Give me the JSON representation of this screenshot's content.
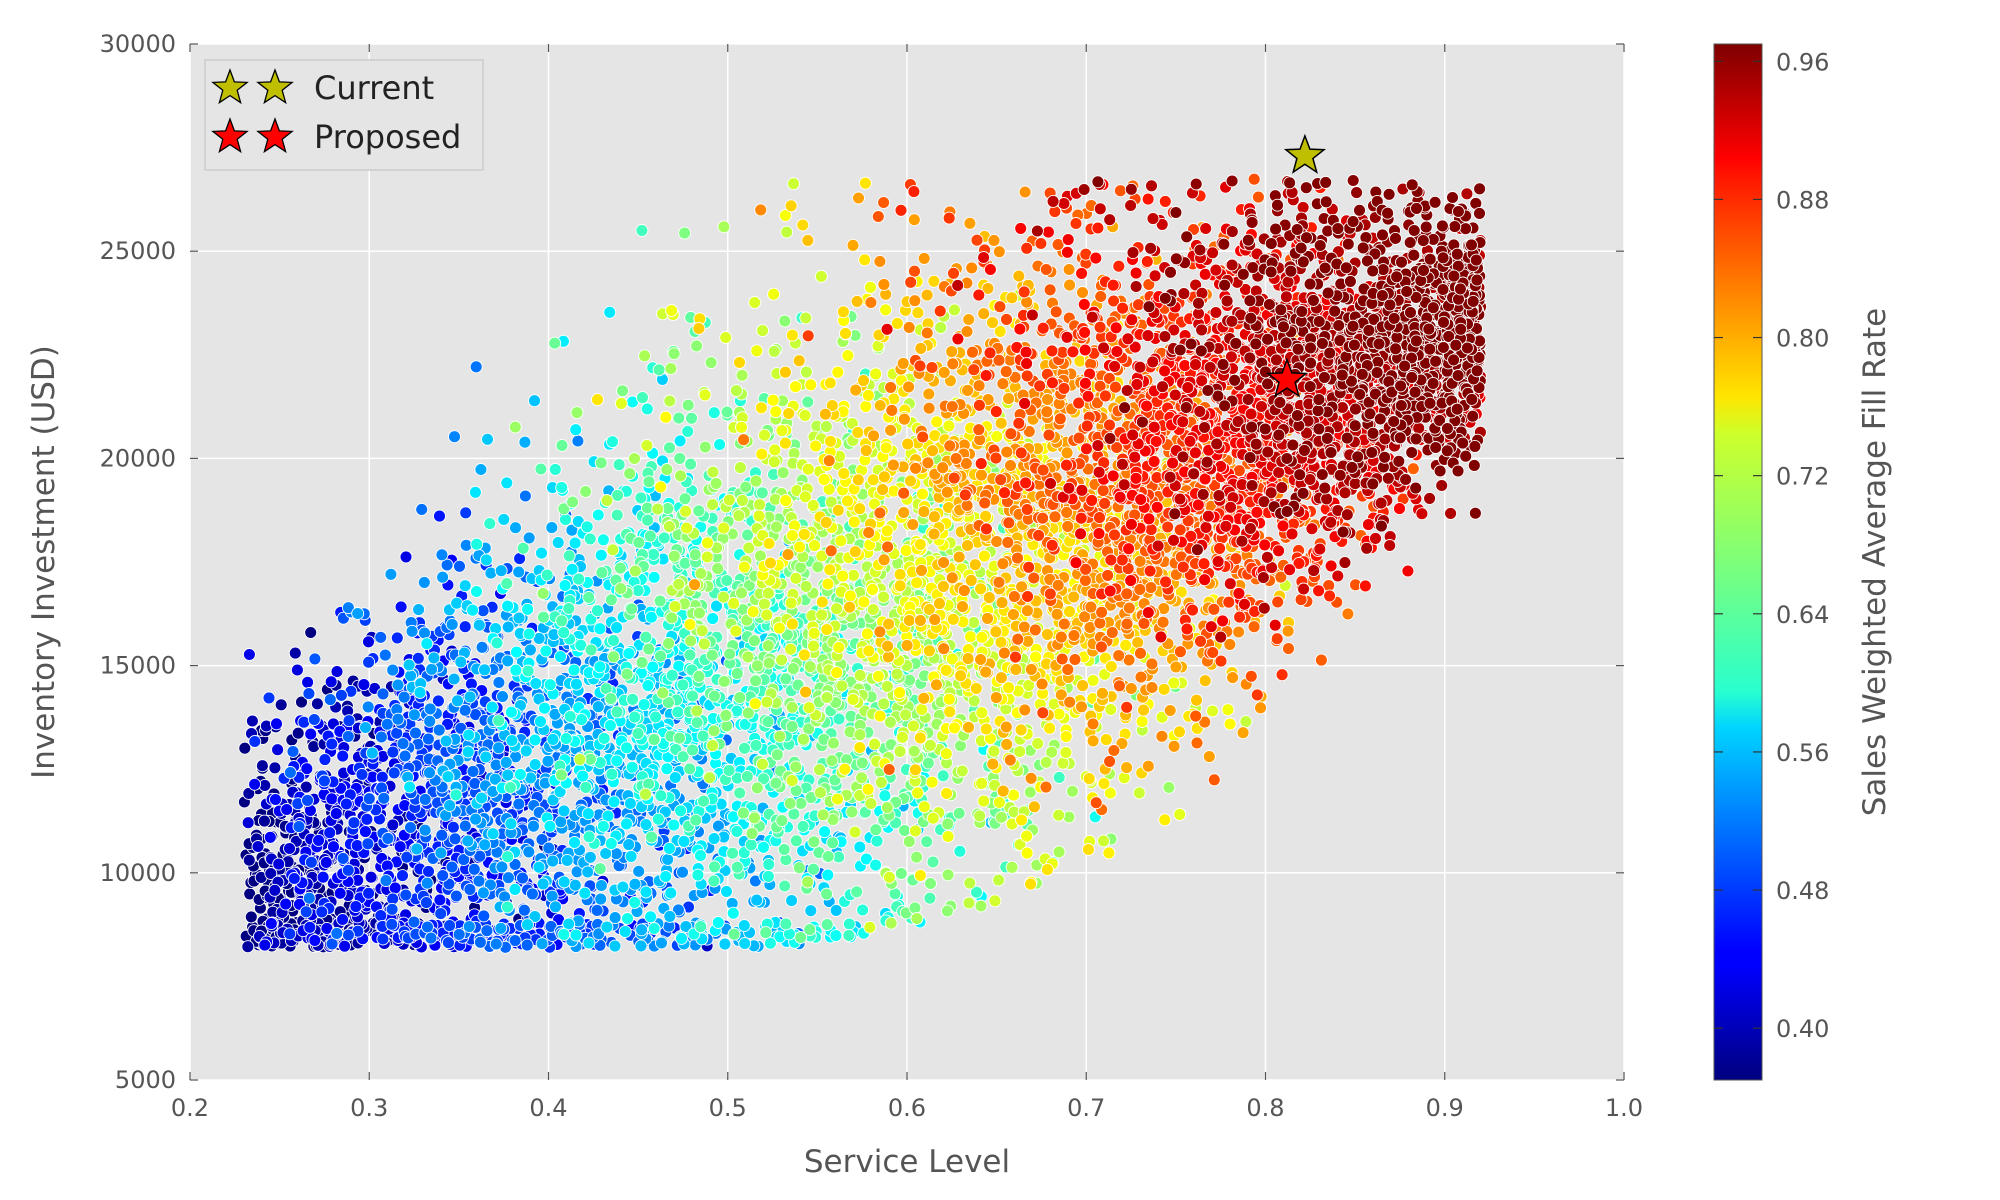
{
  "chart_data": {
    "type": "scatter",
    "title": "",
    "xlabel": "Service Level",
    "ylabel": "Inventory Investment (USD)",
    "xlim": [
      0.2,
      1.0
    ],
    "ylim": [
      5000,
      30000
    ],
    "xticks": [
      "0.2",
      "0.3",
      "0.4",
      "0.5",
      "0.6",
      "0.7",
      "0.8",
      "0.9",
      "1.0"
    ],
    "yticks": [
      "5000",
      "10000",
      "15000",
      "20000",
      "25000",
      "30000"
    ],
    "grid": true,
    "background": "#e5e5e5",
    "colorbar": {
      "label": "Sales Weighted Average Fill Rate",
      "colormap": "jet",
      "range": [
        0.37,
        0.97
      ],
      "ticks": [
        "0.40",
        "0.48",
        "0.56",
        "0.64",
        "0.72",
        "0.80",
        "0.88",
        "0.96"
      ]
    },
    "highlight_points": [
      {
        "name": "Current",
        "x": 0.822,
        "y": 27300,
        "color": "#bfbf00",
        "marker": "star"
      },
      {
        "name": "Proposed",
        "x": 0.812,
        "y": 21900,
        "color": "#ff0000",
        "marker": "star"
      }
    ],
    "legend": {
      "position": "top-left",
      "entries": [
        {
          "label": "Current",
          "color": "#bfbf00",
          "marker": "star"
        },
        {
          "label": "Proposed",
          "color": "#ff0000",
          "marker": "star"
        }
      ]
    },
    "cloud": {
      "description_points": 9000,
      "x_range": [
        0.23,
        0.925
      ],
      "y_range": [
        8000,
        27000
      ],
      "fill_rate_range": [
        0.37,
        0.97
      ]
    }
  }
}
